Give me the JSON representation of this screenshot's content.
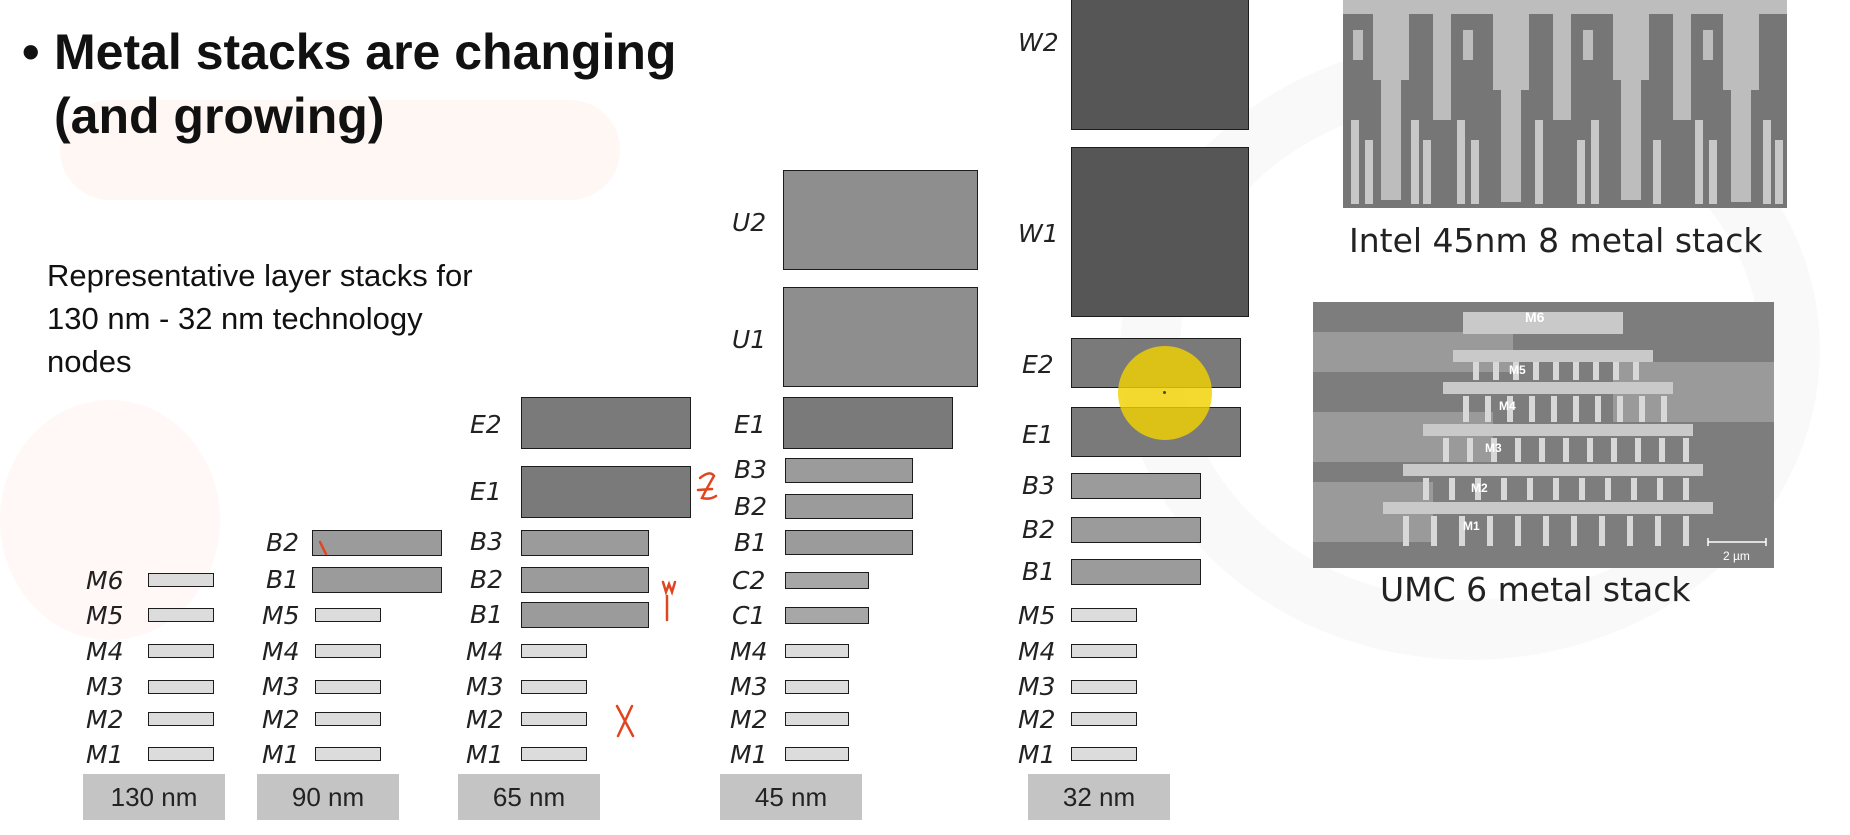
{
  "title": {
    "bullet": "•",
    "line1": "Metal stacks are changing",
    "line2": "(and growing)"
  },
  "subtitle": [
    "Representative layer stacks for",
    "130 nm - 32 nm technology",
    "nodes"
  ],
  "nodes": [
    "130 nm",
    "90 nm",
    "65 nm",
    "45 nm",
    "32 nm"
  ],
  "layers": {
    "n130": [
      "M6",
      "M5",
      "M4",
      "M3",
      "M2",
      "M1"
    ],
    "n90": [
      "B2",
      "B1",
      "M5",
      "M4",
      "M3",
      "M2",
      "M1"
    ],
    "n65": [
      "E2",
      "E1",
      "B3",
      "B2",
      "B1",
      "M4",
      "M3",
      "M2",
      "M1"
    ],
    "n45": [
      "U2",
      "U1",
      "E1",
      "B3",
      "B2",
      "B1",
      "C2",
      "C1",
      "M4",
      "M3",
      "M2",
      "M1"
    ],
    "n32": [
      "W2",
      "W1",
      "E2",
      "E1",
      "B3",
      "B2",
      "B1",
      "M5",
      "M4",
      "M3",
      "M2",
      "M1"
    ]
  },
  "photos": {
    "intel_caption": "Intel 45nm 8 metal stack",
    "umc_caption": "UMC 6 metal stack",
    "umc_labels": [
      "M6",
      "M5",
      "M4",
      "M3",
      "M2",
      "M1"
    ],
    "umc_scale": "2 µm"
  },
  "colors": {
    "accent_ink": "#e0451f",
    "highlight": "#f2d200",
    "sem_gray": "#7d7d7d"
  }
}
